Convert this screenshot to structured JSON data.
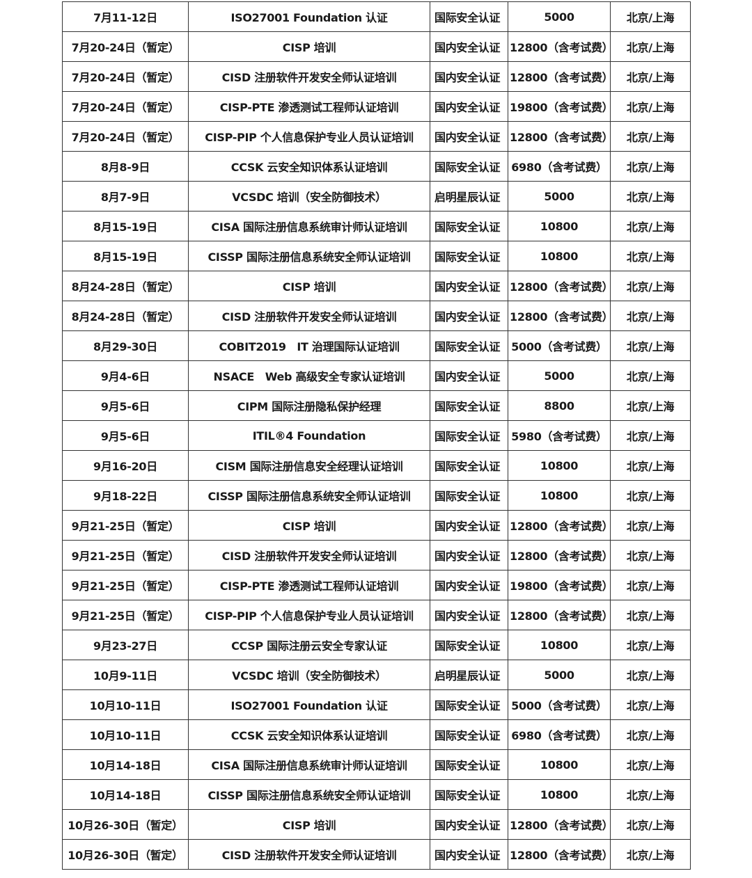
{
  "table": {
    "rows": [
      [
        "7月11-12日",
        "ISO27001 Foundation 认证",
        "国际安全认证",
        "5000",
        "北京/上海"
      ],
      [
        "7月20-24日（暂定）",
        "CISP 培训",
        "国内安全认证",
        "12800（含考试费）",
        "北京/上海"
      ],
      [
        "7月20-24日（暂定）",
        "CISD 注册软件开发安全师认证培训",
        "国内安全认证",
        "12800（含考试费）",
        "北京/上海"
      ],
      [
        "7月20-24日（暂定）",
        "CISP-PTE 渗透测试工程师认证培训",
        "国内安全认证",
        "19800（含考试费）",
        "北京/上海"
      ],
      [
        "7月20-24日（暂定）",
        "CISP-PIP 个人信息保护专业人员认证培训",
        "国内安全认证",
        "12800（含考试费）",
        "北京/上海"
      ],
      [
        "8月8-9日",
        "CCSK 云安全知识体系认证培训",
        "国际安全认证",
        "6980（含考试费）",
        "北京/上海"
      ],
      [
        "8月7-9日",
        "VCSDC 培训（安全防御技术）",
        "启明星辰认证",
        "5000",
        "北京/上海"
      ],
      [
        "8月15-19日",
        "CISA 国际注册信息系统审计师认证培训",
        "国际安全认证",
        "10800",
        "北京/上海"
      ],
      [
        "8月15-19日",
        "CISSP 国际注册信息系统安全师认证培训",
        "国际安全认证",
        "10800",
        "北京/上海"
      ],
      [
        "8月24-28日（暂定）",
        "CISP 培训",
        "国内安全认证",
        "12800（含考试费）",
        "北京/上海"
      ],
      [
        "8月24-28日（暂定）",
        "CISD 注册软件开发安全师认证培训",
        "国内安全认证",
        "12800（含考试费）",
        "北京/上海"
      ],
      [
        "8月29-30日",
        "COBIT2019　IT 治理国际认证培训",
        "国际安全认证",
        "5000（含考试费）",
        "北京/上海"
      ],
      [
        "9月4-6日",
        "NSACE　Web 高级安全专家认证培训",
        "国内安全认证",
        "5000",
        "北京/上海"
      ],
      [
        "9月5-6日",
        "CIPM 国际注册隐私保护经理",
        "国际安全认证",
        "8800",
        "北京/上海"
      ],
      [
        "9月5-6日",
        "ITIL®4 Foundation",
        "国际安全认证",
        "5980（含考试费）",
        "北京/上海"
      ],
      [
        "9月16-20日",
        "CISM 国际注册信息安全经理认证培训",
        "国际安全认证",
        "10800",
        "北京/上海"
      ],
      [
        "9月18-22日",
        "CISSP 国际注册信息系统安全师认证培训",
        "国际安全认证",
        "10800",
        "北京/上海"
      ],
      [
        "9月21-25日（暂定）",
        "CISP 培训",
        "国内安全认证",
        "12800（含考试费）",
        "北京/上海"
      ],
      [
        "9月21-25日（暂定）",
        "CISD 注册软件开发安全师认证培训",
        "国内安全认证",
        "12800（含考试费）",
        "北京/上海"
      ],
      [
        "9月21-25日（暂定）",
        "CISP-PTE 渗透测试工程师认证培训",
        "国内安全认证",
        "19800（含考试费）",
        "北京/上海"
      ],
      [
        "9月21-25日（暂定）",
        "CISP-PIP 个人信息保护专业人员认证培训",
        "国内安全认证",
        "12800（含考试费）",
        "北京/上海"
      ],
      [
        "9月23-27日",
        "CCSP 国际注册云安全专家认证",
        "国际安全认证",
        "10800",
        "北京/上海"
      ],
      [
        "10月9-11日",
        "VCSDC 培训（安全防御技术）",
        "启明星辰认证",
        "5000",
        "北京/上海"
      ],
      [
        "10月10-11日",
        "ISO27001 Foundation 认证",
        "国际安全认证",
        "5000（含考试费）",
        "北京/上海"
      ],
      [
        "10月10-11日",
        "CCSK 云安全知识体系认证培训",
        "国际安全认证",
        "6980（含考试费）",
        "北京/上海"
      ],
      [
        "10月14-18日",
        "CISA 国际注册信息系统审计师认证培训",
        "国际安全认证",
        "10800",
        "北京/上海"
      ],
      [
        "10月14-18日",
        "CISSP 国际注册信息系统安全师认证培训",
        "国际安全认证",
        "10800",
        "北京/上海"
      ],
      [
        "10月26-30日（暂定）",
        "CISP 培训",
        "国内安全认证",
        "12800（含考试费）",
        "北京/上海"
      ],
      [
        "10月26-30日（暂定）",
        "CISD 注册软件开发安全师认证培训",
        "国内安全认证",
        "12800（含考试费）",
        "北京/上海"
      ]
    ]
  }
}
